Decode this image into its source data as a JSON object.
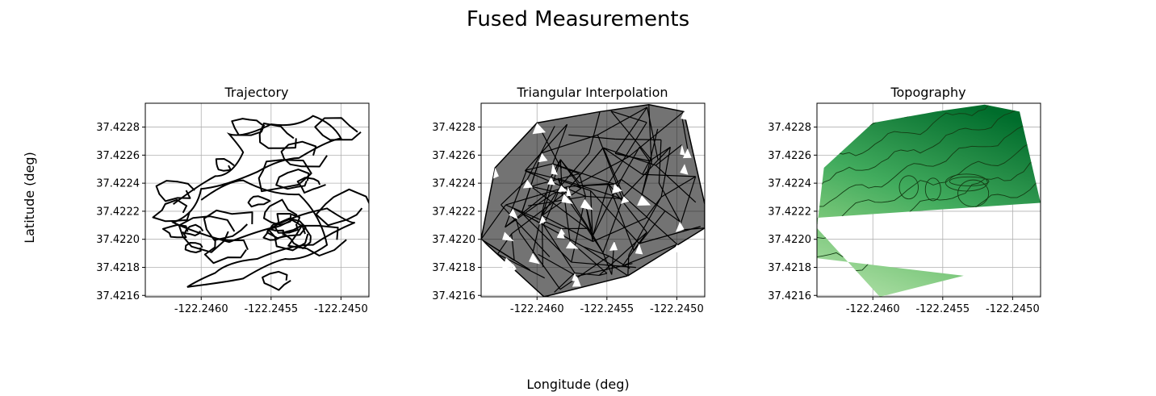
{
  "figure": {
    "title": "Fused Measurements",
    "supxlabel": "Longitude (deg)",
    "supylabel": "Latitude (deg)"
  },
  "chart_data": [
    {
      "type": "line",
      "title": "Trajectory",
      "xlim": [
        -122.2464,
        -122.2448
      ],
      "ylim": [
        37.42159,
        37.42297
      ],
      "xticks": [
        -122.246,
        -122.2455,
        -122.245
      ],
      "yticks": [
        37.4216,
        37.4218,
        37.422,
        37.4222,
        37.4224,
        37.4226,
        37.4228
      ],
      "xtick_labels": [
        "-122.2460",
        "-122.2455",
        "-122.2450"
      ],
      "ytick_labels": [
        "37.4216",
        "37.4218",
        "37.4220",
        "37.4222",
        "37.4224",
        "37.4226",
        "37.4228"
      ],
      "grid": true,
      "series": [
        {
          "color": "#000000",
          "x": [
            -122.2462,
            -122.2459,
            -122.2457,
            -122.2458,
            -122.2455,
            -122.2452,
            -122.245,
            -122.2453,
            -122.2456,
            -122.246,
            -122.2462,
            -122.2458,
            -122.2455,
            -122.2451,
            -122.2449,
            -122.2452,
            -122.2456,
            -122.2459,
            -122.2461,
            -122.2457,
            -122.2454,
            -122.2451,
            -122.2453,
            -122.2457,
            -122.246
          ],
          "y": [
            37.42225,
            37.42245,
            37.42262,
            37.42275,
            37.42282,
            37.42288,
            37.42272,
            37.42258,
            37.42248,
            37.42236,
            37.42212,
            37.42198,
            37.42208,
            37.42222,
            37.42212,
            37.42196,
            37.42186,
            37.42176,
            37.42166,
            37.42172,
            37.42186,
            37.42196,
            37.42232,
            37.42242,
            37.42228
          ]
        }
      ]
    },
    {
      "type": "line",
      "title": "Triangular Interpolation",
      "xlim": [
        -122.2464,
        -122.2448
      ],
      "ylim": [
        37.42159,
        37.42297
      ],
      "xticks": [
        -122.246,
        -122.2455,
        -122.245
      ],
      "yticks": [
        37.4216,
        37.4218,
        37.422,
        37.4222,
        37.4224,
        37.4226,
        37.4228
      ],
      "xtick_labels": [
        "-122.2460",
        "-122.2455",
        "-122.2450"
      ],
      "ytick_labels": [
        "37.4216",
        "37.4218",
        "37.4220",
        "37.4222",
        "37.4224",
        "37.4226",
        "37.4228"
      ],
      "grid": true,
      "hull": {
        "x": [
          -122.2464,
          -122.2463,
          -122.246,
          -122.24555,
          -122.2452,
          -122.24495,
          -122.2448,
          -122.2448,
          -122.24535,
          -122.24595,
          -122.2464
        ],
        "y": [
          37.422,
          37.42251,
          37.42283,
          37.42291,
          37.42296,
          37.42291,
          37.42225,
          37.42208,
          37.42174,
          37.42159,
          37.422
        ]
      }
    },
    {
      "type": "area",
      "title": "Topography",
      "xlim": [
        -122.2464,
        -122.2448
      ],
      "ylim": [
        37.42159,
        37.42297
      ],
      "xticks": [
        -122.246,
        -122.2455,
        -122.245
      ],
      "yticks": [
        37.4216,
        37.4218,
        37.422,
        37.4222,
        37.4224,
        37.4226,
        37.4228
      ],
      "xtick_labels": [
        "-122.2460",
        "-122.2455",
        "-122.2450"
      ],
      "ytick_labels": [
        "37.4216",
        "37.4218",
        "37.4220",
        "37.4222",
        "37.4224",
        "37.4226",
        "37.4228"
      ],
      "grid": true,
      "colormap": "Greens",
      "colors": [
        "#e5f5e0",
        "#c7e9c0",
        "#a1d99b",
        "#74c476",
        "#41ab5d",
        "#238b45",
        "#006d2c"
      ],
      "hull": {
        "x": [
          -122.2464,
          -122.24635,
          -122.246,
          -122.24555,
          -122.2452,
          -122.24495,
          -122.2448,
          -122.24795,
          -122.24535,
          -122.24595,
          -122.2464
        ],
        "y": [
          37.42208,
          37.42251,
          37.42283,
          37.42291,
          37.42296,
          37.42291,
          37.42226,
          37.42205,
          37.42174,
          37.42159,
          37.42208
        ]
      }
    }
  ]
}
